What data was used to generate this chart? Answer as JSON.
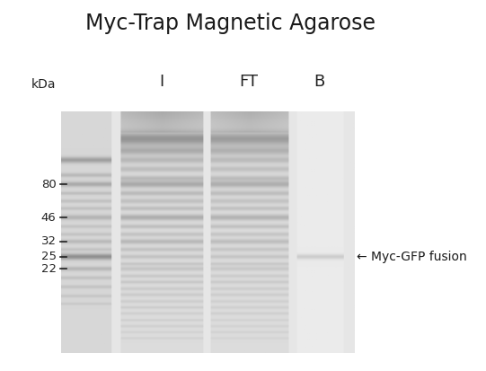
{
  "title": "Myc-Trap Magnetic Agarose",
  "title_fontsize": 17,
  "title_color": "#1a1a1a",
  "background_color": "#ffffff",
  "lane_labels": [
    "I",
    "FT",
    "B"
  ],
  "kda_label": "kDa",
  "kda_marks": [
    80,
    46,
    32,
    25,
    22
  ],
  "annotation_text": "← Myc-GFP fusion",
  "gel_image_rows": 400,
  "gel_image_cols": 320,
  "gel_bg_gray": 230,
  "lane_bg_gray": 220,
  "ladder_bg_gray": 215,
  "band_dark_gray": 145,
  "band_mid_gray": 170
}
